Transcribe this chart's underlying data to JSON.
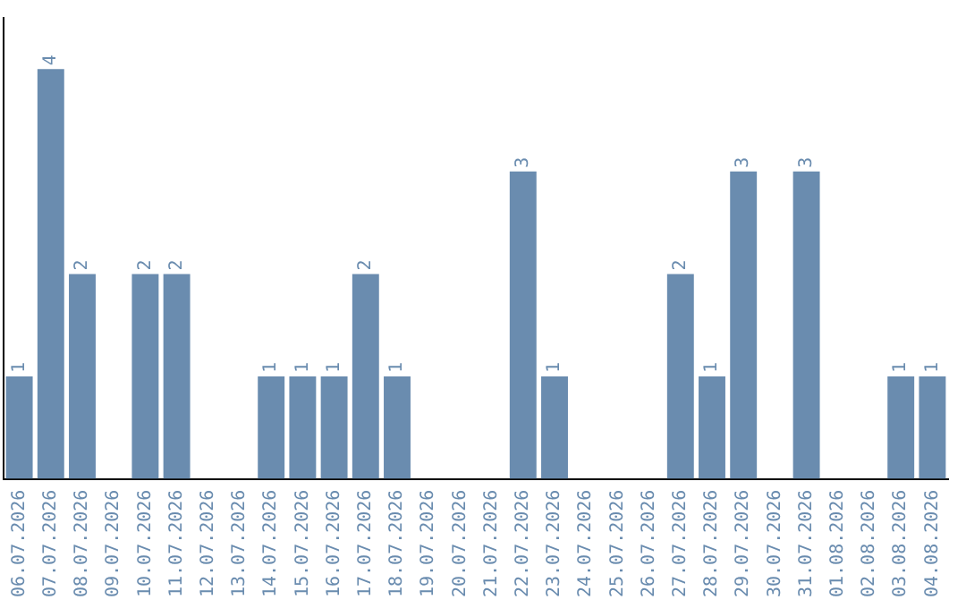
{
  "chart_data": {
    "type": "bar",
    "categories": [
      "06.07.2026",
      "07.07.2026",
      "08.07.2026",
      "09.07.2026",
      "10.07.2026",
      "11.07.2026",
      "12.07.2026",
      "13.07.2026",
      "14.07.2026",
      "15.07.2026",
      "16.07.2026",
      "17.07.2026",
      "18.07.2026",
      "19.07.2026",
      "20.07.2026",
      "21.07.2026",
      "22.07.2026",
      "23.07.2026",
      "24.07.2026",
      "25.07.2026",
      "26.07.2026",
      "27.07.2026",
      "28.07.2026",
      "29.07.2026",
      "30.07.2026",
      "31.07.2026",
      "01.08.2026",
      "02.08.2026",
      "03.08.2026",
      "04.08.2026"
    ],
    "values": [
      1,
      4,
      2,
      0,
      2,
      2,
      0,
      0,
      1,
      1,
      1,
      2,
      1,
      0,
      0,
      0,
      3,
      1,
      0,
      0,
      0,
      2,
      1,
      3,
      0,
      3,
      0,
      0,
      1,
      1
    ],
    "value_labels": [
      "1",
      "4",
      "2",
      null,
      "2",
      "2",
      null,
      null,
      "1",
      "1",
      "1",
      "2",
      "1",
      null,
      null,
      null,
      "3",
      "1",
      null,
      null,
      null,
      "2",
      "1",
      "3",
      null,
      "3",
      null,
      null,
      "1",
      "1"
    ],
    "color": "#6a8caf",
    "grid": false,
    "legend": false,
    "tick_labels": "x"
  }
}
